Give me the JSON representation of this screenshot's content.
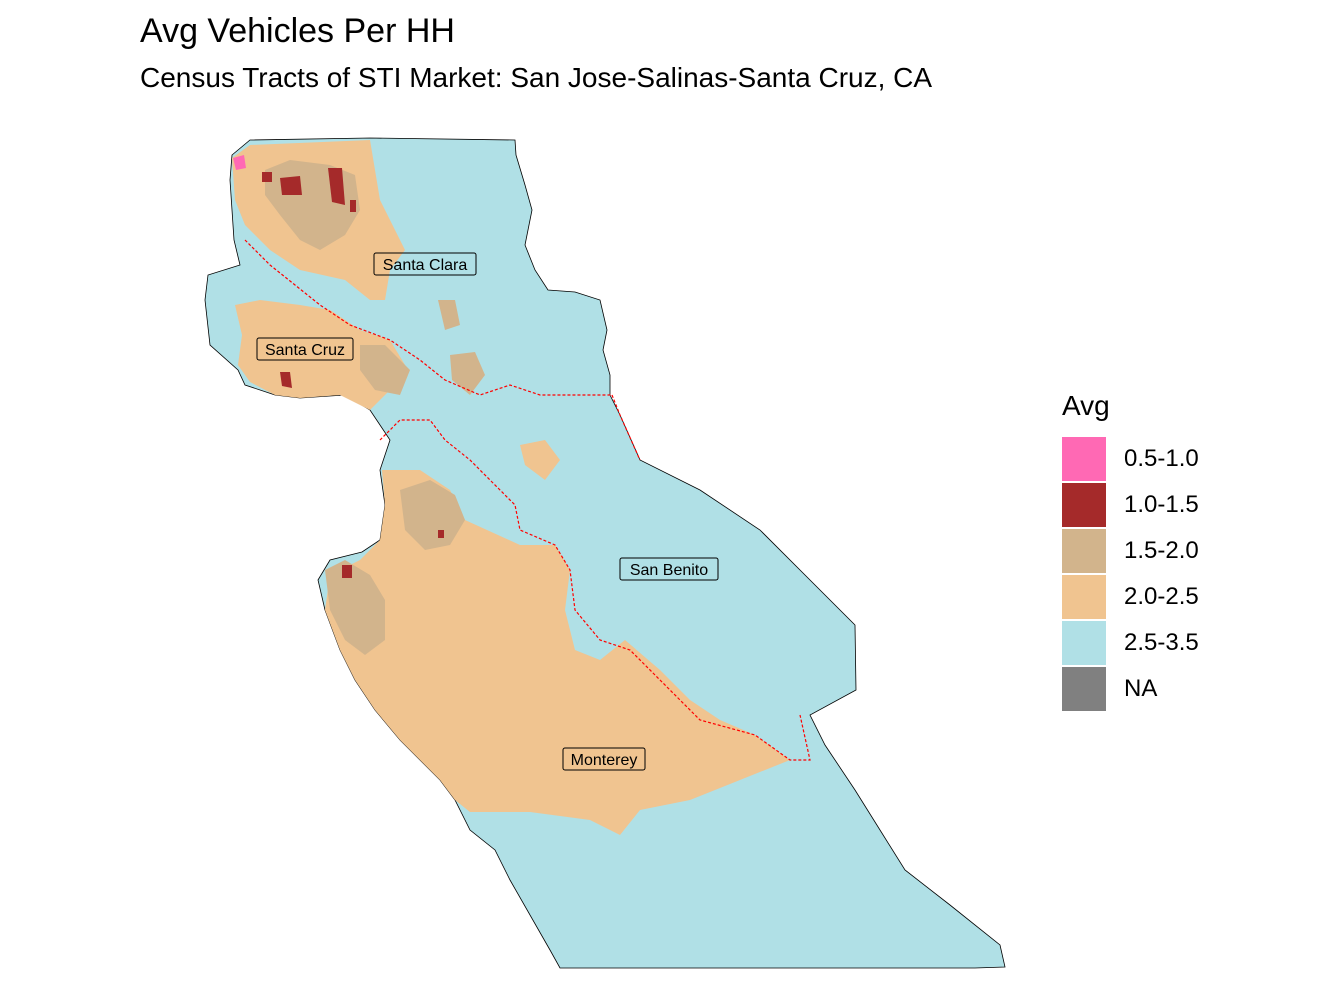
{
  "title": "Avg Vehicles Per HH",
  "subtitle": "Census Tracts of STI Market: San Jose-Salinas-Santa Cruz, CA",
  "legend": {
    "title": "Avg",
    "items": [
      {
        "label": "0.5-1.0",
        "color": "#ff69b4"
      },
      {
        "label": "1.0-1.5",
        "color": "#a52a2a"
      },
      {
        "label": "1.5-2.0",
        "color": "#d2b48c"
      },
      {
        "label": "2.0-2.5",
        "color": "#f0c490"
      },
      {
        "label": "2.5-3.5",
        "color": "#b0e0e6"
      },
      {
        "label": "NA",
        "color": "#808080"
      }
    ]
  },
  "counties": [
    {
      "name": "Santa Clara"
    },
    {
      "name": "Santa Cruz"
    },
    {
      "name": "San Benito"
    },
    {
      "name": "Monterey"
    }
  ],
  "colors": {
    "county_border": "#ff0000",
    "outline": "#000000"
  }
}
